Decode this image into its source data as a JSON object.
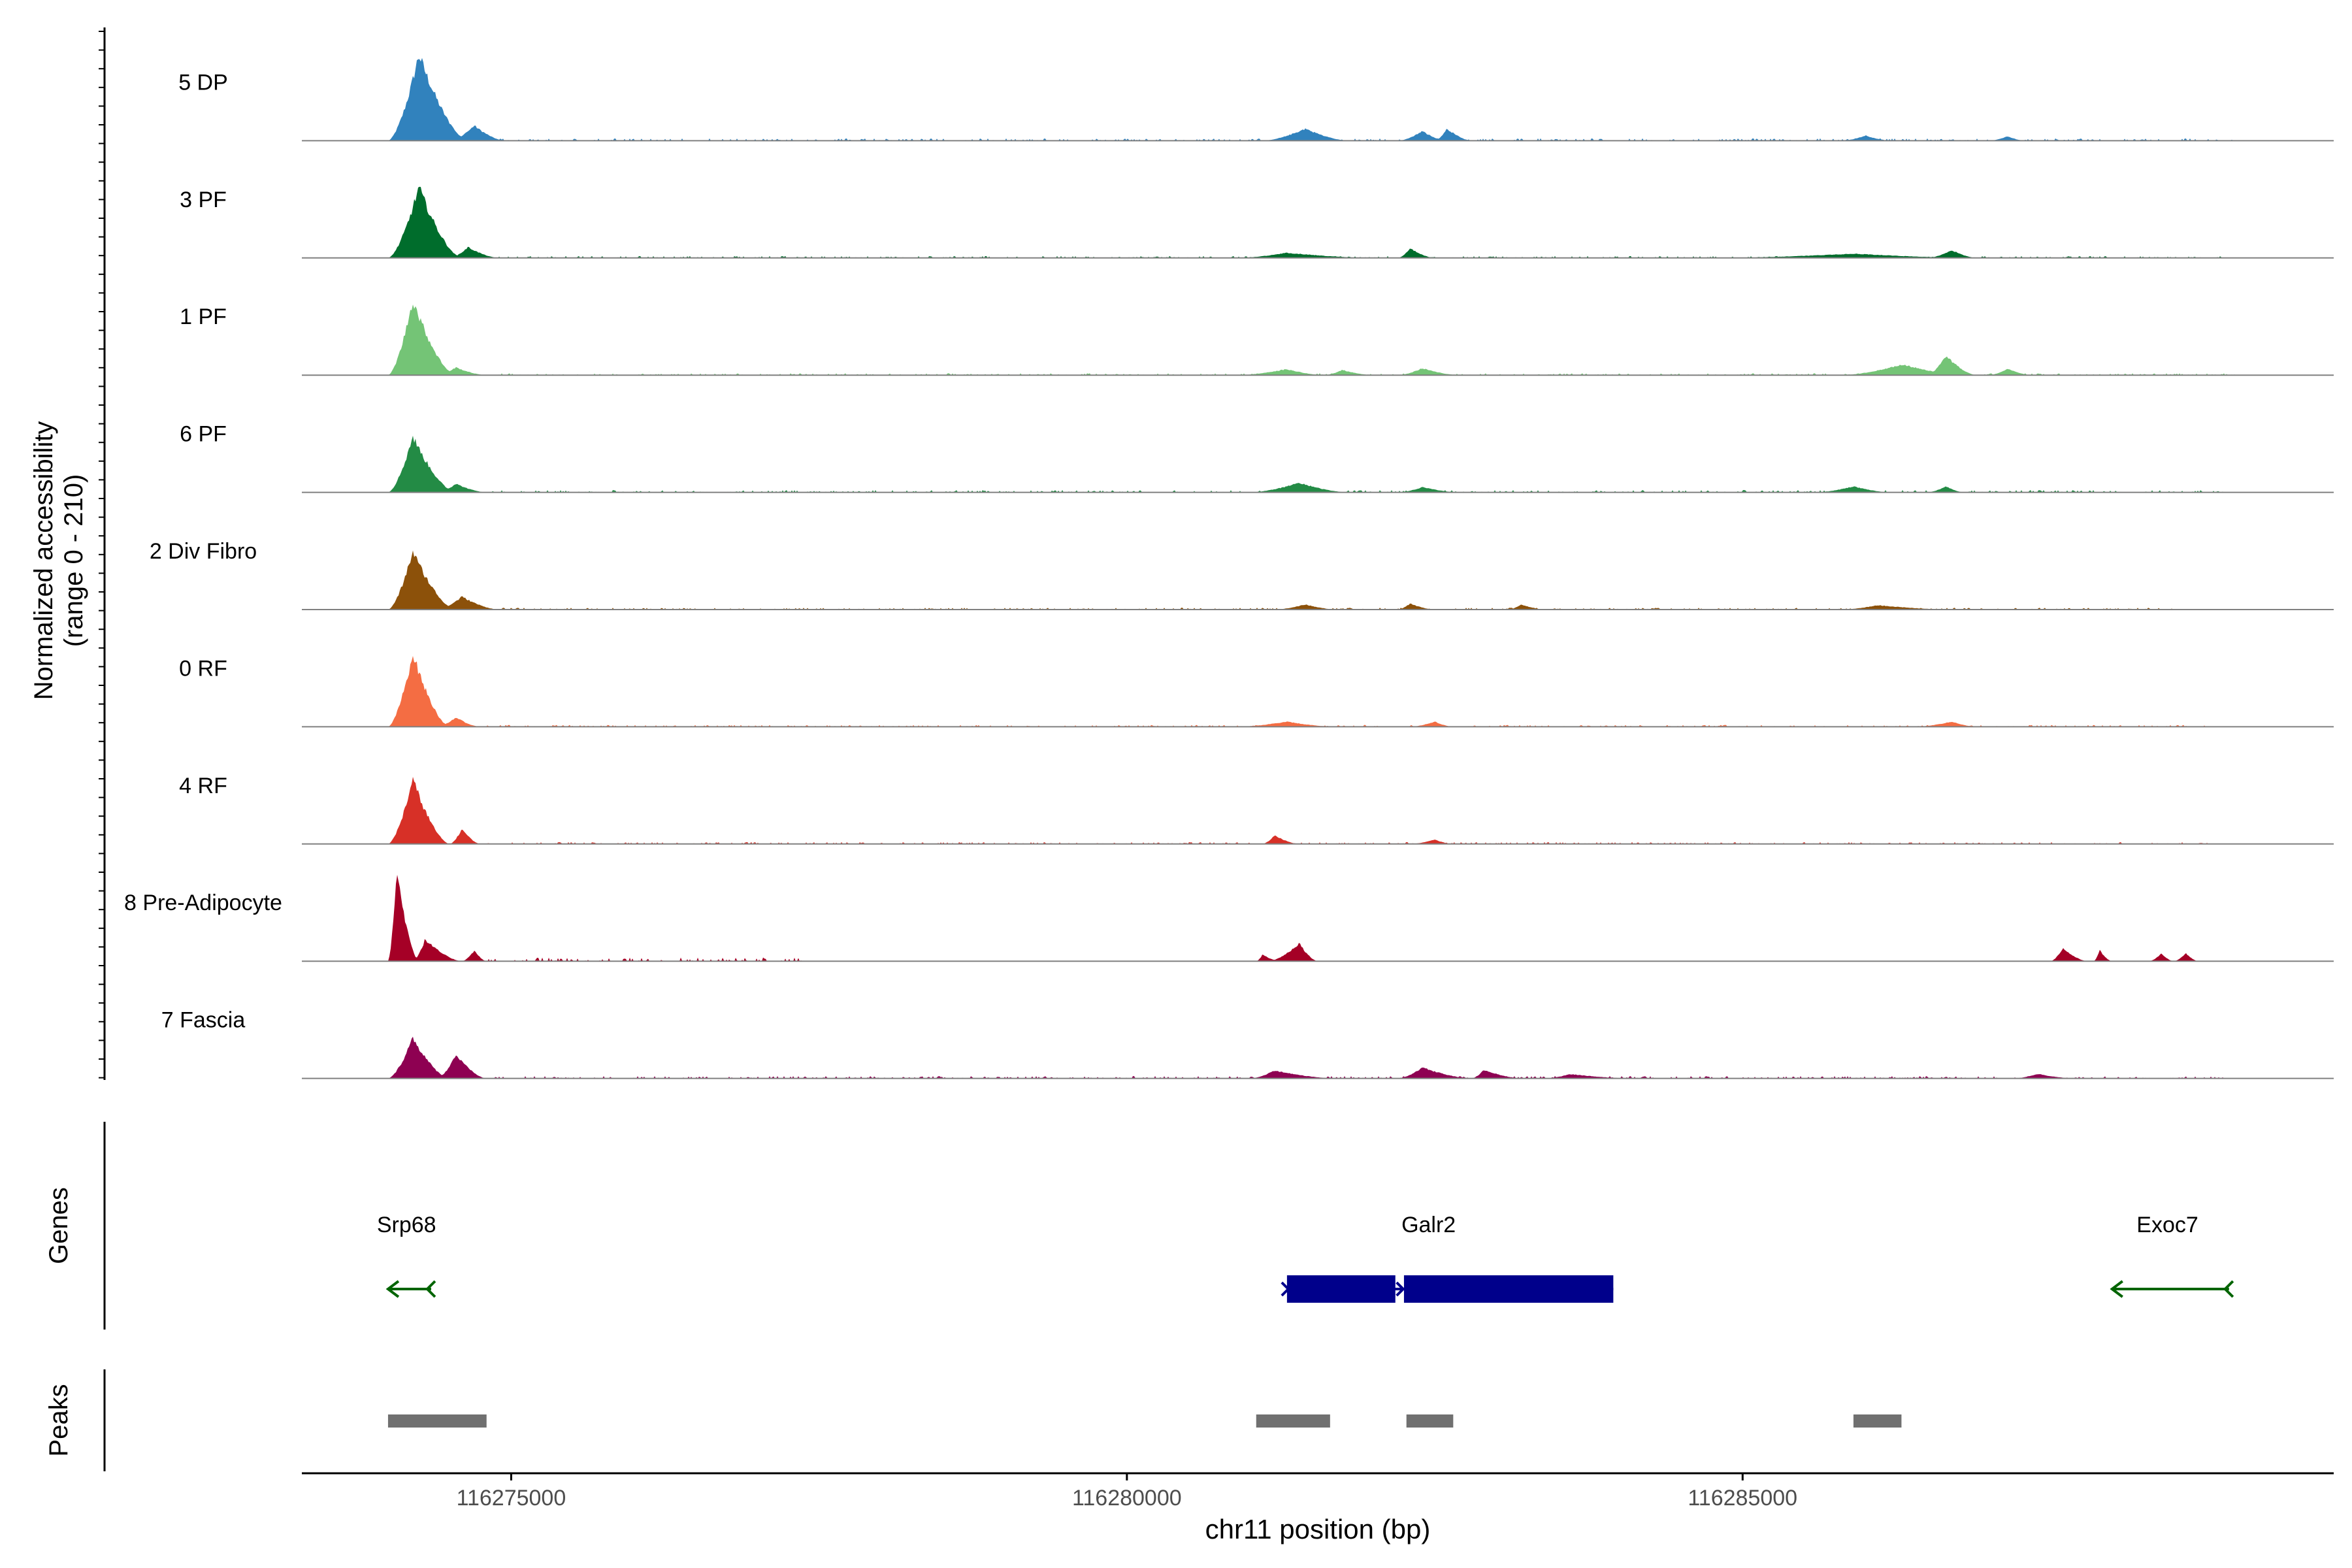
{
  "chart_data": {
    "type": "area",
    "title": "",
    "chromosome": "chr11",
    "xlabel": "chr11 position (bp)",
    "ylabel_line1": "Normalized accessibility",
    "ylabel_line2": "(range 0 - 210)",
    "y_range": [
      0,
      210
    ],
    "x_range": [
      116273300,
      116289800
    ],
    "x_ticks": [
      {
        "value": 116275000,
        "label": "116275000"
      },
      {
        "value": 116280000,
        "label": "116280000"
      },
      {
        "value": 116285000,
        "label": "116285000"
      }
    ],
    "tracks": [
      {
        "name": "5 DP",
        "color": "#3182BD",
        "peaks": [
          [
            116274000,
            116274250,
            116274650,
            200,
            "main"
          ],
          [
            116274500,
            116274700,
            116274950,
            35,
            "main"
          ],
          [
            116281100,
            116281450,
            116281800,
            28,
            "main"
          ],
          [
            116282200,
            116282400,
            116282600,
            22,
            "main"
          ],
          [
            116282500,
            116282600,
            116282800,
            28,
            "main"
          ],
          [
            116285800,
            116286000,
            116286200,
            12,
            "main"
          ],
          [
            116287000,
            116287150,
            116287300,
            10,
            "main"
          ]
        ],
        "noise": [
          116274900,
          116289000,
          5
        ]
      },
      {
        "name": "3 PF",
        "color": "#006D2C",
        "peaks": [
          [
            116274000,
            116274250,
            116274600,
            165,
            "main"
          ],
          [
            116274500,
            116274650,
            116274900,
            25,
            "main"
          ],
          [
            116280900,
            116281300,
            116282000,
            12,
            "main"
          ],
          [
            116282200,
            116282300,
            116282500,
            22,
            "main"
          ],
          [
            116284800,
            116285900,
            116286900,
            10,
            "main"
          ],
          [
            116286500,
            116286700,
            116286900,
            18,
            "main"
          ]
        ],
        "noise": [
          116274900,
          116288900,
          4
        ]
      },
      {
        "name": "1 PF",
        "color": "#74C476",
        "peaks": [
          [
            116274000,
            116274200,
            116274550,
            175,
            "main"
          ],
          [
            116274400,
            116274550,
            116274800,
            18,
            "main"
          ],
          [
            116280900,
            116281300,
            116281600,
            14,
            "main"
          ],
          [
            116281600,
            116281750,
            116282000,
            12,
            "main"
          ],
          [
            116282200,
            116282400,
            116282700,
            16,
            "main"
          ],
          [
            116285800,
            116286300,
            116286800,
            25,
            "main"
          ],
          [
            116286500,
            116286650,
            116286900,
            45,
            "main"
          ],
          [
            116287000,
            116287150,
            116287350,
            15,
            "main"
          ]
        ],
        "noise": [
          116274900,
          116289000,
          4
        ]
      },
      {
        "name": "6 PF",
        "color": "#238B45",
        "peaks": [
          [
            116274000,
            116274200,
            116274550,
            130,
            "main"
          ],
          [
            116274400,
            116274550,
            116274800,
            20,
            "main"
          ],
          [
            116281000,
            116281400,
            116281800,
            22,
            "main"
          ],
          [
            116282200,
            116282400,
            116282700,
            12,
            "main"
          ],
          [
            116285600,
            116285900,
            116286200,
            14,
            "main"
          ],
          [
            116286500,
            116286650,
            116286800,
            14,
            "main"
          ]
        ],
        "noise": [
          116274800,
          116288900,
          5
        ]
      },
      {
        "name": "2 Div Fibro",
        "color": "#8C510A",
        "peaks": [
          [
            116274000,
            116274200,
            116274550,
            135,
            "main"
          ],
          [
            116274400,
            116274600,
            116274900,
            30,
            "main"
          ],
          [
            116281200,
            116281450,
            116281700,
            12,
            "main"
          ],
          [
            116282200,
            116282300,
            116282500,
            14,
            "main"
          ],
          [
            116283100,
            116283200,
            116283400,
            12,
            "main"
          ],
          [
            116285800,
            116286100,
            116286700,
            10,
            "main"
          ]
        ],
        "noise": [
          116274800,
          116288600,
          4
        ]
      },
      {
        "name": "0 RF",
        "color": "#F46D43",
        "peaks": [
          [
            116274000,
            116274200,
            116274500,
            170,
            "main"
          ],
          [
            116274400,
            116274550,
            116274750,
            22,
            "main"
          ],
          [
            116280900,
            116281300,
            116281700,
            12,
            "main"
          ],
          [
            116282300,
            116282500,
            116282650,
            12,
            "main"
          ],
          [
            116286400,
            116286700,
            116286900,
            12,
            "main"
          ]
        ],
        "noise": [
          116274800,
          116288800,
          4
        ]
      },
      {
        "name": "4 RF",
        "color": "#D73027",
        "peaks": [
          [
            116274000,
            116274200,
            116274500,
            150,
            "main"
          ],
          [
            116274500,
            116274600,
            116274750,
            35,
            "main"
          ],
          [
            116281100,
            116281200,
            116281400,
            20,
            "main"
          ],
          [
            116282300,
            116282500,
            116282650,
            10,
            "main"
          ]
        ],
        "noise": [
          116274800,
          116288800,
          4
        ]
      },
      {
        "name": "8 Pre-Adipocyte",
        "color": "#A50026",
        "peaks": [
          [
            116274000,
            116274070,
            116274250,
            210,
            "main"
          ],
          [
            116274200,
            116274300,
            116274600,
            50,
            "main"
          ],
          [
            116274600,
            116274700,
            116274800,
            25,
            "main"
          ],
          [
            116281150,
            116281400,
            116281550,
            42,
            "main"
          ],
          [
            116281050,
            116281100,
            116281250,
            15,
            "main"
          ],
          [
            116287500,
            116287600,
            116287800,
            30,
            "main"
          ],
          [
            116287850,
            116287900,
            116288000,
            25,
            "main"
          ],
          [
            116288300,
            116288400,
            116288500,
            18,
            "main"
          ],
          [
            116288500,
            116288600,
            116288700,
            18,
            "main"
          ]
        ],
        "noise": [
          116274800,
          116277400,
          8
        ]
      },
      {
        "name": "7 Fascia",
        "color": "#8E0152",
        "peaks": [
          [
            116274000,
            116274200,
            116274500,
            95,
            "main"
          ],
          [
            116274400,
            116274550,
            116274800,
            55,
            "main"
          ],
          [
            116281000,
            116281200,
            116281700,
            18,
            "main"
          ],
          [
            116282200,
            116282400,
            116282800,
            25,
            "main"
          ],
          [
            116282800,
            116282900,
            116283200,
            20,
            "main"
          ],
          [
            116283400,
            116283600,
            116284100,
            10,
            "main"
          ],
          [
            116287200,
            116287400,
            116287700,
            10,
            "main"
          ]
        ],
        "noise": [
          116274800,
          116288900,
          5
        ]
      }
    ],
    "genes_label": "Genes",
    "genes": [
      {
        "name": "Srp68",
        "start": 116274000,
        "end": 116274350,
        "strand": "-",
        "color": "#006400",
        "label_pos": 116274150
      },
      {
        "name": "Galr2",
        "start": 116281300,
        "end": 116283950,
        "strand": "+",
        "color": "#00008B",
        "label_pos": 116282450,
        "exons": [
          [
            116281300,
            116282180
          ],
          [
            116282250,
            116283950
          ]
        ]
      },
      {
        "name": "Exoc7",
        "start": 116288000,
        "end": 116288950,
        "strand": "-",
        "color": "#006400",
        "label_pos": 116288450
      }
    ],
    "peaks_label": "Peaks",
    "peak_regions": [
      [
        116274000,
        116274800
      ],
      [
        116281050,
        116281650
      ],
      [
        116282270,
        116282650
      ],
      [
        116285900,
        116286290
      ]
    ]
  }
}
